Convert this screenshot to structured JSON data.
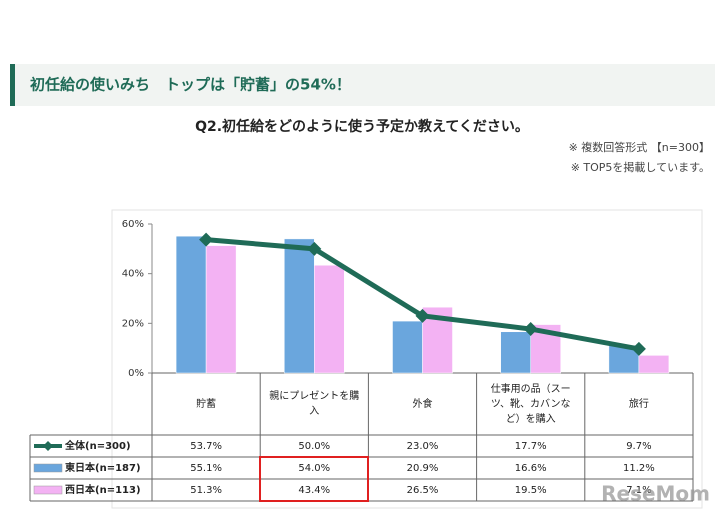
{
  "header": {
    "title": "初任給の使いみち　トップは「貯蓄」の54%！"
  },
  "chart_data": {
    "type": "combo",
    "title": "Q2.初任給をどのように使う予定か教えてください。",
    "notes": [
      "※ 複数回答形式 【n=300】",
      "※ TOP5を掲載しています。"
    ],
    "categories": [
      "貯蓄",
      "親にプレゼントを購入",
      "外食",
      "仕事用の品（スーツ、靴、カバンなど）を購入",
      "旅行"
    ],
    "series": [
      {
        "name": "全体(n=300)",
        "kind": "line",
        "color": "#1f6b57",
        "values": [
          53.7,
          50.0,
          23.0,
          17.7,
          9.7
        ],
        "value_labels": [
          "53.7%",
          "50.0%",
          "23.0%",
          "17.7%",
          "9.7%"
        ]
      },
      {
        "name": "東日本(n=187)",
        "kind": "bar",
        "color": "#6aa6dd",
        "values": [
          55.1,
          54.0,
          20.9,
          16.6,
          11.2
        ],
        "value_labels": [
          "55.1%",
          "54.0%",
          "20.9%",
          "16.6%",
          "11.2%"
        ]
      },
      {
        "name": "西日本(n=113)",
        "kind": "bar",
        "color": "#f3b2f3",
        "values": [
          51.3,
          43.4,
          26.5,
          19.5,
          7.1
        ],
        "value_labels": [
          "51.3%",
          "43.4%",
          "26.5%",
          "19.5%",
          "7.1%"
        ]
      }
    ],
    "ylim": [
      0,
      60
    ],
    "yticks": [
      {
        "value": 0,
        "label": "0%"
      },
      {
        "value": 20,
        "label": "20%"
      },
      {
        "value": 40,
        "label": "40%"
      },
      {
        "value": 60,
        "label": "60%"
      }
    ],
    "grid": false
  },
  "watermark": "ReseMom"
}
